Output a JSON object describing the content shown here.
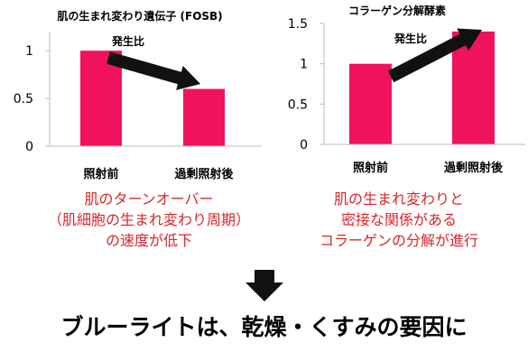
{
  "colors": {
    "bar": "#f0125f",
    "arrow": "#111111",
    "caption": "#d9262b",
    "axis": "#bdbdbd"
  },
  "chart_data": [
    {
      "type": "bar",
      "title": "肌の生まれ変わり遺伝子 (FOSB)",
      "annotation": "発生比",
      "categories": [
        "照射前",
        "過剰照射後"
      ],
      "values": [
        1.0,
        0.6
      ],
      "ylim": [
        0,
        1.2
      ],
      "yticks": [
        "0",
        "0.5",
        "1"
      ],
      "grid": false,
      "legend": "none"
    },
    {
      "type": "bar",
      "title": "コラーゲン分解酵素",
      "annotation": "発生比",
      "categories": [
        "照射前",
        "過剰照射後"
      ],
      "values": [
        1.0,
        1.4
      ],
      "ylim": [
        0,
        1.5
      ],
      "yticks": [
        "0",
        "0.5",
        "1",
        "1.5"
      ],
      "grid": false,
      "legend": "none"
    }
  ],
  "captions": {
    "left": [
      "肌のターンオーバー",
      "（肌細胞の生まれ変わり周期）",
      "の速度が低下"
    ],
    "right": [
      "肌の生まれ変わりと",
      "密接な関係がある",
      "コラーゲンの分解が進行"
    ]
  },
  "conclusion": "ブルーライトは、乾燥・くすみの要因に"
}
